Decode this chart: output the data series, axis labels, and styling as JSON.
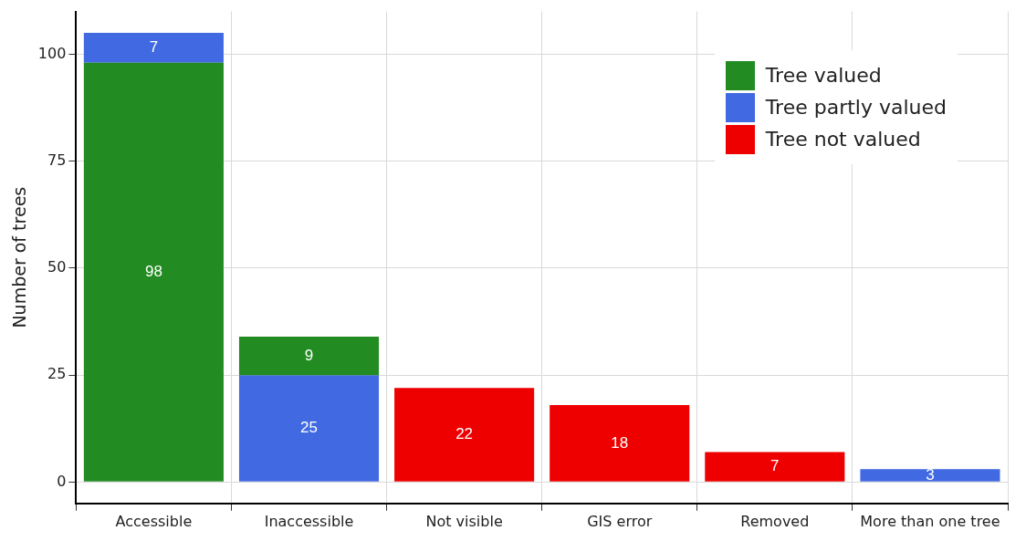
{
  "chart_data": {
    "type": "bar",
    "ylabel": "Number of trees",
    "categories": [
      "Accessible",
      "Inaccessible",
      "Not visible",
      "GIS error",
      "Removed",
      "More than one tree"
    ],
    "series": [
      {
        "name": "Tree valued",
        "color": "#228b22",
        "values": [
          98,
          9,
          null,
          null,
          null,
          null
        ],
        "base": [
          0,
          25,
          null,
          null,
          null,
          null
        ]
      },
      {
        "name": "Tree partly valued",
        "color": "#4169e1",
        "values": [
          7,
          25,
          null,
          null,
          null,
          3
        ],
        "base": [
          98,
          0,
          null,
          null,
          null,
          0
        ]
      },
      {
        "name": "Tree not valued",
        "color": "#ee0000",
        "values": [
          null,
          null,
          22,
          18,
          7,
          null
        ],
        "base": [
          null,
          null,
          0,
          0,
          0,
          null
        ]
      }
    ],
    "ylim": [
      -5,
      110
    ],
    "yticks": [
      0,
      25,
      50,
      75,
      100
    ],
    "grid": true,
    "legend": "top right",
    "data_labels": true
  }
}
